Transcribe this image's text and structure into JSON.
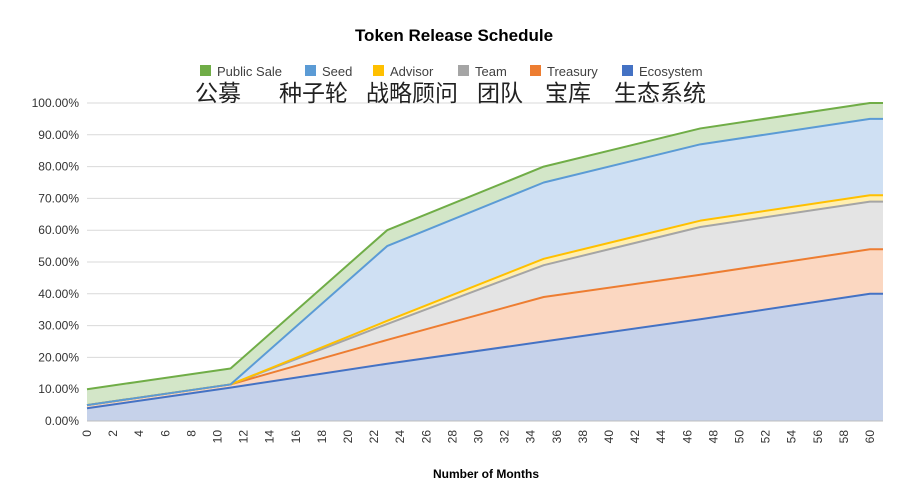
{
  "chart_data": {
    "type": "area",
    "title": "Token Release Schedule",
    "xlabel": "Number of Months",
    "ylabel": "",
    "xlim": [
      0,
      61
    ],
    "ylim": [
      0,
      100
    ],
    "y_format": "percent_2dp",
    "stacked": true,
    "grid": true,
    "legend_position": "top",
    "x_ticks": [
      0,
      2,
      4,
      6,
      8,
      10,
      12,
      14,
      16,
      18,
      20,
      22,
      24,
      26,
      28,
      30,
      32,
      34,
      36,
      38,
      40,
      42,
      44,
      46,
      48,
      50,
      52,
      54,
      56,
      58,
      60
    ],
    "y_ticks": [
      0,
      10,
      20,
      30,
      40,
      50,
      60,
      70,
      80,
      90,
      100
    ],
    "x": [
      0,
      11,
      23,
      35,
      47,
      60,
      61
    ],
    "series": [
      {
        "name": "Ecosystem",
        "color": "#4472C4",
        "fill": "#C6D2EA",
        "values": [
          4,
          10.5,
          18,
          25,
          32,
          40,
          40
        ]
      },
      {
        "name": "Treasury",
        "color": "#ED7D31",
        "fill": "#FBD7C1",
        "values": [
          5,
          11.5,
          25.5,
          39,
          46,
          54,
          54
        ]
      },
      {
        "name": "Team",
        "color": "#A5A5A5",
        "fill": "#E4E4E4",
        "values": [
          5,
          11.5,
          30.5,
          49,
          61,
          69,
          69
        ]
      },
      {
        "name": "Advisor",
        "color": "#FFC000",
        "fill": "#FFEFB0",
        "values": [
          5,
          11.5,
          31.5,
          51,
          63,
          71,
          71
        ]
      },
      {
        "name": "Seed",
        "color": "#5B9BD5",
        "fill": "#CFE0F3",
        "values": [
          5,
          11.5,
          55,
          75,
          87,
          95,
          95
        ]
      },
      {
        "name": "Public Sale",
        "color": "#70AD47",
        "fill": "#D3E6C8",
        "values": [
          10,
          16.5,
          60,
          80,
          92,
          100,
          100
        ]
      }
    ],
    "legend_order": [
      "Public Sale",
      "Seed",
      "Advisor",
      "Team",
      "Treasury",
      "Ecosystem"
    ],
    "annotations": [
      "公募",
      "种子轮",
      "战略顾问",
      "团队",
      "宝库",
      "生态系统"
    ]
  }
}
